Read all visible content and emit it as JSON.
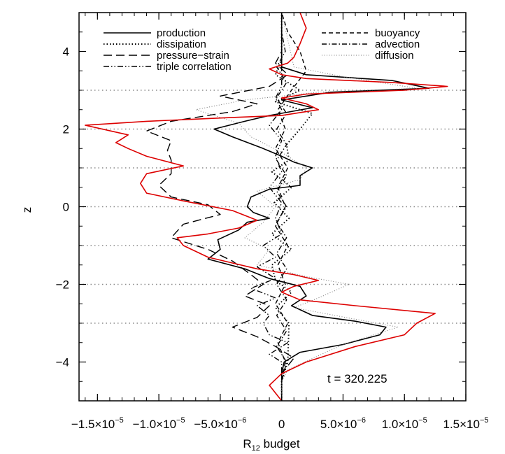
{
  "chart_data": {
    "type": "line",
    "title": "",
    "xlabel": "R",
    "xlabel_sub": "12",
    "xlabel_suffix": " budget",
    "ylabel": "z",
    "xlim": [
      -1.65e-05,
      1.5e-05
    ],
    "ylim": [
      -5,
      5
    ],
    "x_ticks": [
      {
        "value": -1.5e-05,
        "mant": "−1.5×10",
        "exp": "−5"
      },
      {
        "value": -1e-05,
        "mant": "−1.0×10",
        "exp": "−5"
      },
      {
        "value": -5e-06,
        "mant": "−5.0×10",
        "exp": "−6"
      },
      {
        "value": 0,
        "mant": "0",
        "exp": ""
      },
      {
        "value": 5e-06,
        "mant": "5.0×10",
        "exp": "−6"
      },
      {
        "value": 1e-05,
        "mant": "1.0×10",
        "exp": "−5"
      },
      {
        "value": 1.5e-05,
        "mant": "1.5×10",
        "exp": "−5"
      }
    ],
    "y_ticks": [
      {
        "value": -4,
        "label": "−4"
      },
      {
        "value": -2,
        "label": "−2"
      },
      {
        "value": 0,
        "label": "0"
      },
      {
        "value": 2,
        "label": "2"
      },
      {
        "value": 4,
        "label": "4"
      }
    ],
    "hlines": [
      -3,
      -2,
      -1,
      0,
      1,
      2,
      3
    ],
    "annotation": "t  =  320.225",
    "legend": {
      "left": [
        {
          "label": "production",
          "style": "solid"
        },
        {
          "label": "dissipation",
          "style": "dotted"
        },
        {
          "label": "pressure−strain",
          "style": "longdash"
        },
        {
          "label": "triple correlation",
          "style": "dashdotdot"
        }
      ],
      "right": [
        {
          "label": "buoyancy",
          "style": "dashed"
        },
        {
          "label": "advection",
          "style": "dashdot"
        },
        {
          "label": "diffusion",
          "style": "thindotted"
        }
      ]
    },
    "series": [
      {
        "key": "production",
        "style": "solid",
        "color": "#000000",
        "points": [
          [
            0,
            -5
          ],
          [
            0,
            -4.3
          ],
          [
            2e-07,
            -4.0
          ],
          [
            1.5e-06,
            -3.75
          ],
          [
            5e-06,
            -3.55
          ],
          [
            8e-06,
            -3.3
          ],
          [
            8.5e-06,
            -3.1
          ],
          [
            6e-06,
            -2.95
          ],
          [
            2.5e-06,
            -2.8
          ],
          [
            8e-07,
            -2.55
          ],
          [
            2e-06,
            -2.3
          ],
          [
            1.5e-06,
            -2.05
          ],
          [
            -1e-06,
            -1.85
          ],
          [
            -3e-06,
            -1.6
          ],
          [
            -6e-06,
            -1.35
          ],
          [
            -5e-06,
            -1.1
          ],
          [
            -5.2e-06,
            -0.85
          ],
          [
            -3.5e-06,
            -0.6
          ],
          [
            -2.8e-06,
            -0.4
          ],
          [
            -1e-06,
            -0.3
          ],
          [
            -2.3e-06,
            -0.15
          ],
          [
            -2.8e-06,
            0
          ],
          [
            -2.5e-06,
            0.25
          ],
          [
            -1e-06,
            0.45
          ],
          [
            1.5e-06,
            0.55
          ],
          [
            1.5e-06,
            0.8
          ],
          [
            2.5e-06,
            1.0
          ],
          [
            1e-06,
            1.15
          ],
          [
            0,
            1.3
          ],
          [
            -1.5e-06,
            1.5
          ],
          [
            -4e-06,
            1.8
          ],
          [
            -5.5e-06,
            2.0
          ],
          [
            -3e-06,
            2.2
          ],
          [
            -1e-06,
            2.35
          ],
          [
            2.5e-06,
            2.55
          ],
          [
            0,
            2.75
          ],
          [
            4e-06,
            2.95
          ],
          [
            1.2e-05,
            3.05
          ],
          [
            9e-06,
            3.25
          ],
          [
            2e-06,
            3.4
          ],
          [
            0,
            3.6
          ],
          [
            0,
            5
          ]
        ]
      },
      {
        "key": "dissipation",
        "style": "dotted",
        "color": "#000000",
        "points": [
          [
            0,
            -5
          ],
          [
            0,
            -4.5
          ],
          [
            5e-07,
            -4.0
          ],
          [
            6e-07,
            -3.0
          ],
          [
            -5e-07,
            -2.6
          ],
          [
            8e-07,
            -2.2
          ],
          [
            -5e-07,
            -1.9
          ],
          [
            -8e-07,
            -1.5
          ],
          [
            8e-07,
            -1.1
          ],
          [
            -8e-07,
            -0.7
          ],
          [
            6e-07,
            -0.3
          ],
          [
            -6e-07,
            0.1
          ],
          [
            8e-07,
            0.5
          ],
          [
            -8e-07,
            0.9
          ],
          [
            6e-07,
            1.2
          ],
          [
            4e-07,
            1.6
          ],
          [
            1.5e-06,
            2.0
          ],
          [
            2.5e-06,
            2.4
          ],
          [
            -5e-07,
            2.7
          ],
          [
            1.5e-06,
            3.0
          ],
          [
            -5e-07,
            3.4
          ],
          [
            0,
            3.8
          ],
          [
            0,
            5
          ]
        ]
      },
      {
        "key": "pressure-strain",
        "style": "longdash",
        "color": "#000000",
        "points": [
          [
            0,
            -5
          ],
          [
            0,
            -4.3
          ],
          [
            1e-06,
            -3.9
          ],
          [
            -5e-07,
            -3.6
          ],
          [
            -2e-06,
            -3.35
          ],
          [
            -4e-06,
            -3.1
          ],
          [
            -2e-06,
            -2.85
          ],
          [
            -1e-06,
            -2.55
          ],
          [
            -3e-06,
            -2.3
          ],
          [
            -1.5e-06,
            -2.0
          ],
          [
            -2.5e-06,
            -1.75
          ],
          [
            -4e-06,
            -1.4
          ],
          [
            -6e-06,
            -1.1
          ],
          [
            -9e-06,
            -0.8
          ],
          [
            -8e-06,
            -0.45
          ],
          [
            -5e-06,
            -0.2
          ],
          [
            -6e-06,
            0.05
          ],
          [
            -9e-06,
            0.25
          ],
          [
            -1e-05,
            0.55
          ],
          [
            -9e-06,
            0.85
          ],
          [
            -9e-06,
            1.2
          ],
          [
            -9.3e-06,
            1.45
          ],
          [
            -9e-06,
            1.7
          ],
          [
            -1.1e-05,
            1.95
          ],
          [
            -9e-06,
            2.2
          ],
          [
            -4e-06,
            2.45
          ],
          [
            -2e-06,
            2.65
          ],
          [
            -5e-06,
            2.85
          ],
          [
            -1e-06,
            3.1
          ],
          [
            5e-07,
            3.4
          ],
          [
            -5e-07,
            3.7
          ],
          [
            0,
            4.0
          ],
          [
            0,
            5
          ]
        ]
      },
      {
        "key": "triple-correlation",
        "style": "dashdotdot",
        "color": "#000000",
        "points": [
          [
            0,
            -5
          ],
          [
            0,
            -4.0
          ],
          [
            -1e-06,
            -3.8
          ],
          [
            5e-07,
            -3.5
          ],
          [
            -1e-06,
            -3.3
          ],
          [
            -1.5e-06,
            -3.0
          ],
          [
            -1e-06,
            -2.8
          ],
          [
            -2e-06,
            -2.55
          ],
          [
            -5e-07,
            -2.35
          ],
          [
            -2.5e-06,
            -2.1
          ],
          [
            -5e-07,
            -1.85
          ],
          [
            -2e-06,
            -1.55
          ],
          [
            -5e-07,
            -1.3
          ],
          [
            -1.5e-06,
            -1.0
          ],
          [
            0,
            -0.7
          ],
          [
            -5e-07,
            -0.3
          ],
          [
            0,
            0.1
          ],
          [
            -1e-06,
            0.5
          ],
          [
            0,
            0.9
          ],
          [
            -5e-07,
            1.3
          ],
          [
            0,
            1.7
          ],
          [
            -1e-06,
            2.1
          ],
          [
            0,
            2.5
          ],
          [
            -5e-07,
            2.8
          ],
          [
            0,
            3.1
          ],
          [
            0,
            5
          ]
        ]
      },
      {
        "key": "buoyancy",
        "style": "dashed",
        "color": "#000000",
        "points": [
          [
            0,
            -5
          ],
          [
            0,
            -4.5
          ],
          [
            3e-07,
            -4.0
          ],
          [
            -3e-07,
            -3.5
          ],
          [
            5e-07,
            -3.0
          ],
          [
            -5e-07,
            -2.5
          ],
          [
            3e-07,
            -2.0
          ],
          [
            -3e-07,
            -1.5
          ],
          [
            5e-07,
            -1.0
          ],
          [
            -5e-07,
            -0.5
          ],
          [
            3e-07,
            0
          ],
          [
            -3e-07,
            0.5
          ],
          [
            5e-07,
            1.0
          ],
          [
            -5e-07,
            1.5
          ],
          [
            3e-07,
            2.0
          ],
          [
            -3e-07,
            2.5
          ],
          [
            8e-07,
            3.0
          ],
          [
            2e-06,
            3.5
          ],
          [
            1.5e-06,
            4.0
          ],
          [
            5e-07,
            4.5
          ],
          [
            0,
            5
          ]
        ]
      },
      {
        "key": "advection",
        "style": "dashdot",
        "color": "#000000",
        "points": [
          [
            0,
            -5
          ],
          [
            0,
            -4.5
          ],
          [
            4e-07,
            -4.0
          ],
          [
            -4e-07,
            -3.6
          ],
          [
            4e-07,
            -3.2
          ],
          [
            -4e-07,
            -2.8
          ],
          [
            4e-07,
            -2.4
          ],
          [
            -4e-07,
            -2.0
          ],
          [
            4e-07,
            -1.6
          ],
          [
            -4e-07,
            -1.2
          ],
          [
            4e-07,
            -0.8
          ],
          [
            -4e-07,
            -0.4
          ],
          [
            4e-07,
            0
          ],
          [
            -4e-07,
            0.4
          ],
          [
            4e-07,
            0.8
          ],
          [
            -4e-07,
            1.2
          ],
          [
            4e-07,
            1.6
          ],
          [
            -4e-07,
            2.0
          ],
          [
            4e-07,
            2.4
          ],
          [
            -4e-07,
            2.8
          ],
          [
            4e-07,
            3.2
          ],
          [
            -4e-07,
            3.6
          ],
          [
            3e-07,
            4.0
          ],
          [
            0,
            4.5
          ],
          [
            0,
            5
          ]
        ]
      },
      {
        "key": "diffusion",
        "style": "thindotted",
        "color": "#777777",
        "points": [
          [
            0,
            -5
          ],
          [
            0,
            -4.5
          ],
          [
            5e-07,
            -4.2
          ],
          [
            5e-06,
            -3.55
          ],
          [
            9.5e-06,
            -3.1
          ],
          [
            6e-06,
            -2.9
          ],
          [
            1e-06,
            -2.6
          ],
          [
            3e-06,
            -2.35
          ],
          [
            5.5e-06,
            -2.0
          ],
          [
            2e-06,
            -1.8
          ],
          [
            -2e-06,
            -1.5
          ],
          [
            -1e-06,
            -1.1
          ],
          [
            -3e-06,
            -0.8
          ],
          [
            -1.5e-06,
            -0.4
          ],
          [
            -5e-07,
            0
          ],
          [
            -2e-06,
            0.4
          ],
          [
            1.5e-06,
            0.7
          ],
          [
            2e-06,
            1.0
          ],
          [
            0,
            1.4
          ],
          [
            -2.5e-06,
            1.8
          ],
          [
            -3.5e-06,
            2.15
          ],
          [
            -7e-06,
            2.5
          ],
          [
            -3e-06,
            2.75
          ],
          [
            3e-06,
            2.95
          ],
          [
            1.1e-05,
            3.05
          ],
          [
            5e-06,
            3.35
          ],
          [
            1e-06,
            3.6
          ],
          [
            0,
            5
          ]
        ]
      },
      {
        "key": "total",
        "style": "solid",
        "color": "#dd0000",
        "points": [
          [
            0,
            -5
          ],
          [
            -1e-06,
            -4.6
          ],
          [
            0,
            -4.3
          ],
          [
            2e-06,
            -4.0
          ],
          [
            6e-06,
            -3.6
          ],
          [
            1e-05,
            -3.3
          ],
          [
            1.1e-05,
            -3.0
          ],
          [
            1.25e-05,
            -2.75
          ],
          [
            6e-06,
            -2.55
          ],
          [
            1.5e-06,
            -2.4
          ],
          [
            0,
            -2.2
          ],
          [
            1e-06,
            -2.05
          ],
          [
            3e-06,
            -1.9
          ],
          [
            1e-06,
            -1.75
          ],
          [
            -2e-06,
            -1.6
          ],
          [
            -4e-06,
            -1.45
          ],
          [
            -6e-06,
            -1.3
          ],
          [
            -8e-06,
            -1.0
          ],
          [
            -8.5e-06,
            -0.8
          ],
          [
            -6e-06,
            -0.7
          ],
          [
            -3.5e-06,
            -0.55
          ],
          [
            -2e-06,
            -0.35
          ],
          [
            -4e-06,
            -0.1
          ],
          [
            -8e-06,
            0.15
          ],
          [
            -1.1e-05,
            0.35
          ],
          [
            -1.15e-05,
            0.6
          ],
          [
            -1.1e-05,
            0.85
          ],
          [
            -8e-06,
            1.05
          ],
          [
            -1.1e-05,
            1.3
          ],
          [
            -1.25e-05,
            1.5
          ],
          [
            -1.35e-05,
            1.65
          ],
          [
            -1.25e-05,
            1.85
          ],
          [
            -1.6e-05,
            2.1
          ],
          [
            -1.1e-05,
            2.2
          ],
          [
            -4e-06,
            2.3
          ],
          [
            0,
            2.35
          ],
          [
            3e-06,
            2.5
          ],
          [
            2e-06,
            2.65
          ],
          [
            0,
            2.8
          ],
          [
            2e-06,
            2.9
          ],
          [
            1e-05,
            3.0
          ],
          [
            1.35e-05,
            3.1
          ],
          [
            9e-06,
            3.2
          ],
          [
            2e-06,
            3.3
          ],
          [
            0,
            3.4
          ],
          [
            -1e-06,
            3.55
          ],
          [
            5e-07,
            3.7
          ],
          [
            1e-06,
            3.85
          ],
          [
            1.5e-06,
            4.2
          ],
          [
            2e-06,
            4.6
          ],
          [
            1.5e-06,
            5
          ]
        ]
      }
    ]
  }
}
